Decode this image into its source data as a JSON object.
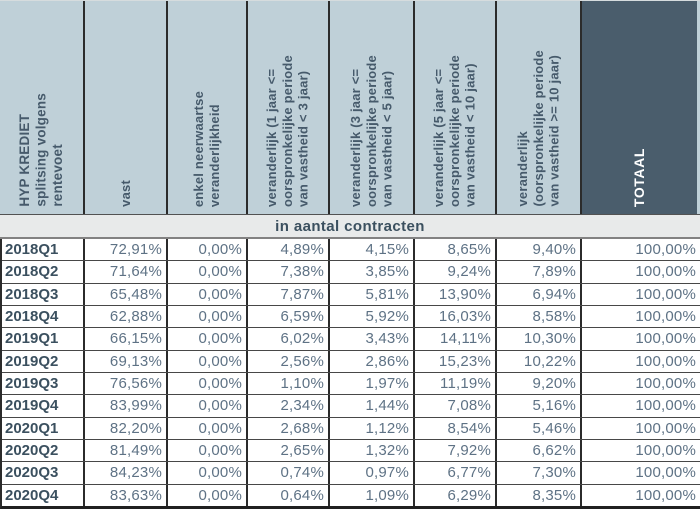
{
  "colors": {
    "header_bg": "#bfd0d8",
    "header_text": "#465a6b",
    "totaal_header_bg": "#4a5d6c",
    "totaal_header_text": "#ffffff",
    "banner_bg": "#e8eaea",
    "grid_border": "#2b2b2b",
    "row_label_text": "#3b505f",
    "value_text": "#5e7285"
  },
  "table": {
    "corner_header": "HYP KREDIET\nsplitsing volgens\nrentevoet",
    "column_headers": [
      "vast",
      "enkel neerwaartse\nveranderlijkheid",
      "veranderlijk (1 jaar <=\noorspronkelijke periode\nvan vastheid < 3 jaar)",
      "veranderlijk (3 jaar <=\noorspronkelijke periode\nvan vastheid < 5 jaar)",
      "veranderlijk (5 jaar <=\noorspronkelijke periode\nvan vastheid < 10 jaar)",
      "veranderlijk\n(oorspronkelijke periode\nvan vastheid >= 10 jaar)",
      "TOTAAL"
    ],
    "banner": "in aantal contracten",
    "rows": [
      {
        "period": "2018Q1",
        "values": [
          "72,91%",
          "0,00%",
          "4,89%",
          "4,15%",
          "8,65%",
          "9,40%",
          "100,00%"
        ]
      },
      {
        "period": "2018Q2",
        "values": [
          "71,64%",
          "0,00%",
          "7,38%",
          "3,85%",
          "9,24%",
          "7,89%",
          "100,00%"
        ]
      },
      {
        "period": "2018Q3",
        "values": [
          "65,48%",
          "0,00%",
          "7,87%",
          "5,81%",
          "13,90%",
          "6,94%",
          "100,00%"
        ]
      },
      {
        "period": "2018Q4",
        "values": [
          "62,88%",
          "0,00%",
          "6,59%",
          "5,92%",
          "16,03%",
          "8,58%",
          "100,00%"
        ]
      },
      {
        "period": "2019Q1",
        "values": [
          "66,15%",
          "0,00%",
          "6,02%",
          "3,43%",
          "14,11%",
          "10,30%",
          "100,00%"
        ]
      },
      {
        "period": "2019Q2",
        "values": [
          "69,13%",
          "0,00%",
          "2,56%",
          "2,86%",
          "15,23%",
          "10,22%",
          "100,00%"
        ]
      },
      {
        "period": "2019Q3",
        "values": [
          "76,56%",
          "0,00%",
          "1,10%",
          "1,97%",
          "11,19%",
          "9,20%",
          "100,00%"
        ]
      },
      {
        "period": "2019Q4",
        "values": [
          "83,99%",
          "0,00%",
          "2,34%",
          "1,44%",
          "7,08%",
          "5,16%",
          "100,00%"
        ]
      },
      {
        "period": "2020Q1",
        "values": [
          "82,20%",
          "0,00%",
          "2,68%",
          "1,12%",
          "8,54%",
          "5,46%",
          "100,00%"
        ]
      },
      {
        "period": "2020Q2",
        "values": [
          "81,49%",
          "0,00%",
          "2,65%",
          "1,32%",
          "7,92%",
          "6,62%",
          "100,00%"
        ]
      },
      {
        "period": "2020Q3",
        "values": [
          "84,23%",
          "0,00%",
          "0,74%",
          "0,97%",
          "6,77%",
          "7,30%",
          "100,00%"
        ]
      },
      {
        "period": "2020Q4",
        "values": [
          "83,63%",
          "0,00%",
          "0,64%",
          "1,09%",
          "6,29%",
          "8,35%",
          "100,00%"
        ]
      }
    ]
  },
  "chart_data": {
    "type": "table",
    "title": "HYP KREDIET splitsing volgens rentevoet",
    "section": "in aantal contracten",
    "unit": "%",
    "decimal_separator": ",",
    "categories": [
      "2018Q1",
      "2018Q2",
      "2018Q3",
      "2018Q4",
      "2019Q1",
      "2019Q2",
      "2019Q3",
      "2019Q4",
      "2020Q1",
      "2020Q2",
      "2020Q3",
      "2020Q4"
    ],
    "series": [
      {
        "name": "vast",
        "values": [
          72.91,
          71.64,
          65.48,
          62.88,
          66.15,
          69.13,
          76.56,
          83.99,
          82.2,
          81.49,
          84.23,
          83.63
        ]
      },
      {
        "name": "enkel neerwaartse veranderlijkheid",
        "values": [
          0,
          0,
          0,
          0,
          0,
          0,
          0,
          0,
          0,
          0,
          0,
          0
        ]
      },
      {
        "name": "veranderlijk (1 jaar <= oorspronkelijke periode van vastheid < 3 jaar)",
        "values": [
          4.89,
          7.38,
          7.87,
          6.59,
          6.02,
          2.56,
          1.1,
          2.34,
          2.68,
          2.65,
          0.74,
          0.64
        ]
      },
      {
        "name": "veranderlijk (3 jaar <= oorspronkelijke periode van vastheid < 5 jaar)",
        "values": [
          4.15,
          3.85,
          5.81,
          5.92,
          3.43,
          2.86,
          1.97,
          1.44,
          1.12,
          1.32,
          0.97,
          1.09
        ]
      },
      {
        "name": "veranderlijk (5 jaar <= oorspronkelijke periode van vastheid < 10 jaar)",
        "values": [
          8.65,
          9.24,
          13.9,
          16.03,
          14.11,
          15.23,
          11.19,
          7.08,
          8.54,
          7.92,
          6.77,
          6.29
        ]
      },
      {
        "name": "veranderlijk (oorspronkelijke periode van vastheid >= 10 jaar)",
        "values": [
          9.4,
          7.89,
          6.94,
          8.58,
          10.3,
          10.22,
          9.2,
          5.16,
          5.46,
          6.62,
          7.3,
          8.35
        ]
      },
      {
        "name": "TOTAAL",
        "values": [
          100,
          100,
          100,
          100,
          100,
          100,
          100,
          100,
          100,
          100,
          100,
          100
        ]
      }
    ]
  }
}
